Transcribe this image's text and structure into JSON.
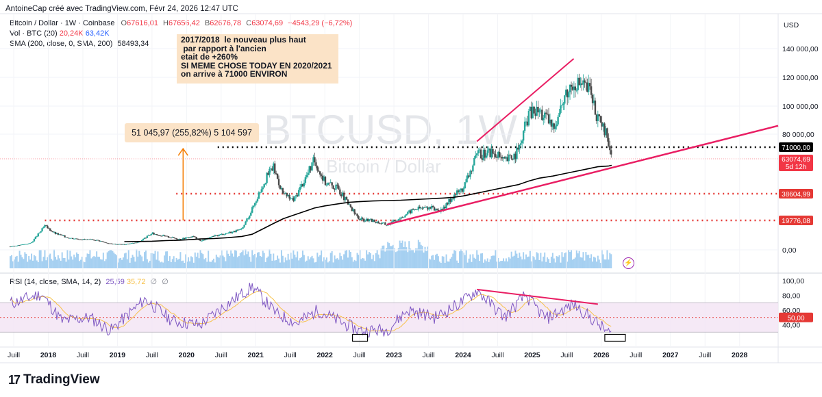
{
  "header": {
    "author_line": "AntoineCap créé avec TradingView.com, Févr 24, 2026 12:47 UTC",
    "symbol": "Bitcoin / Dollar · 1W · Coinbase",
    "o_label": "O",
    "o": "67616,01",
    "h_label": "H",
    "h": "67656,42",
    "b_label": "B",
    "b": "62676,78",
    "c_label": "C",
    "c": "63074,69",
    "chg": "−4543,29 (−6,72%)",
    "vol_label": "Vol · BTC (20)",
    "vol1": "20,24K",
    "vol2": "63,42K",
    "sma_label": "SMA (200, close, 0, SMA, 200)",
    "sma_value": "58493,34",
    "rsi_label": "RSI (14, close, SMA, 14, 2)",
    "rsi_value": "25,59",
    "rsi_ma": "35,72",
    "rsi_na1": "∅",
    "rsi_na2": "∅"
  },
  "watermark": {
    "ticker": "BTCUSD, 1W",
    "name": "Bitcoin / Dollar"
  },
  "annotation": {
    "text": "2017/2018  le nouveau plus haut\n par rapport à l'ancien\netait de +260%\nSI MEME CHOSE TODAY EN 2020/2021\non arrive à 71000 ENVIRON"
  },
  "measure": {
    "label": "51 045,97 (255,82%) 5 104 597"
  },
  "axis": {
    "currency": "USD",
    "price_ticks": [
      "140 000,00",
      "120 000,00",
      "100 000,00",
      "80 000,00",
      "0,00"
    ],
    "rsi_ticks": [
      "100,00",
      "80,00",
      "60,00",
      "40,00"
    ],
    "time_ticks": [
      "Juill",
      "2018",
      "Juill",
      "2019",
      "Juill",
      "2020",
      "Juill",
      "2021",
      "Juill",
      "2022",
      "Juill",
      "2023",
      "Juill",
      "2024",
      "Juill",
      "2025",
      "Juill",
      "2026",
      "Juill",
      "2027",
      "Juill",
      "2028"
    ]
  },
  "price_tags": {
    "level_71000": "71000,00",
    "last_price": "63074,69",
    "countdown": "5d 12h",
    "level_38604": "38604,99",
    "level_19776": "19776,08",
    "rsi_50": "50,00"
  },
  "colors": {
    "up": "#26a69a",
    "down": "#787b86",
    "sma": "#000000",
    "trend": "#e91e63",
    "red_level": "#e53935",
    "rsi": "#7e57c2",
    "rsi_ma": "#f7c24b",
    "volume": "#90c4ee"
  },
  "brand": {
    "name": "TradingView"
  },
  "chart_data": {
    "type": "line",
    "title": "Bitcoin / Dollar · 1W · Coinbase",
    "x": [
      2017.3,
      2017.5,
      2017.75,
      2017.95,
      2018.1,
      2018.3,
      2018.5,
      2018.7,
      2018.9,
      2019.1,
      2019.3,
      2019.5,
      2019.7,
      2019.9,
      2020.1,
      2020.2,
      2020.4,
      2020.6,
      2020.8,
      2020.95,
      2021.1,
      2021.25,
      2021.4,
      2021.55,
      2021.7,
      2021.85,
      2022.0,
      2022.2,
      2022.35,
      2022.5,
      2022.7,
      2022.9,
      2023.1,
      2023.3,
      2023.5,
      2023.7,
      2023.85,
      2024.0,
      2024.2,
      2024.4,
      2024.6,
      2024.8,
      2024.95,
      2025.1,
      2025.3,
      2025.45,
      2025.6,
      2025.75,
      2025.85,
      2025.95,
      2026.1,
      2026.15
    ],
    "series": [
      {
        "name": "Bitcoin / Dollar",
        "values": [
          1200,
          2500,
          4500,
          16000,
          11000,
          8000,
          7000,
          6500,
          4000,
          3600,
          5000,
          11000,
          9000,
          7200,
          9000,
          6000,
          9200,
          11500,
          13500,
          28000,
          45000,
          58000,
          38000,
          34000,
          48000,
          62000,
          47000,
          42000,
          30000,
          20500,
          19500,
          16800,
          22000,
          28000,
          29000,
          26500,
          37000,
          42500,
          65000,
          68000,
          61000,
          68000,
          95000,
          97000,
          85000,
          104000,
          118000,
          114000,
          110000,
          90000,
          77000,
          63074.69
        ]
      },
      {
        "name": "SMA (200, close, 0, SMA, 200)",
        "values": [
          null,
          null,
          null,
          null,
          null,
          null,
          null,
          null,
          null,
          5500,
          5600,
          5800,
          6200,
          6500,
          7000,
          7300,
          7600,
          8200,
          9000,
          10500,
          14000,
          17500,
          21000,
          23500,
          26000,
          28500,
          30000,
          31500,
          32500,
          33000,
          33500,
          33800,
          34000,
          34500,
          35000,
          35500,
          36000,
          37000,
          39000,
          41000,
          43000,
          45000,
          47500,
          49500,
          51000,
          52500,
          54000,
          55500,
          56500,
          57500,
          58000,
          58493.34
        ]
      }
    ],
    "levels": [
      71000,
      38604.99,
      19776.08
    ],
    "ylim": [
      0,
      140000
    ],
    "y_ticks": [
      0,
      80000,
      100000,
      120000,
      140000
    ],
    "xlim": [
      2017.45,
      2028.3
    ],
    "rsi": {
      "x": [
        2017.5,
        2017.9,
        2018.2,
        2018.6,
        2018.9,
        2019.4,
        2019.8,
        2020.2,
        2020.5,
        2020.95,
        2021.3,
        2021.6,
        2021.9,
        2022.2,
        2022.5,
        2022.9,
        2023.2,
        2023.6,
        2024.0,
        2024.2,
        2024.6,
        2024.9,
        2025.2,
        2025.6,
        2025.9,
        2026.15
      ],
      "values": [
        70,
        82,
        45,
        50,
        32,
        75,
        45,
        40,
        62,
        92,
        55,
        42,
        60,
        45,
        32,
        33,
        60,
        50,
        72,
        87,
        50,
        80,
        48,
        68,
        45,
        25.59
      ],
      "ylim": [
        20,
        100
      ],
      "bands": [
        30,
        50,
        70
      ]
    }
  }
}
